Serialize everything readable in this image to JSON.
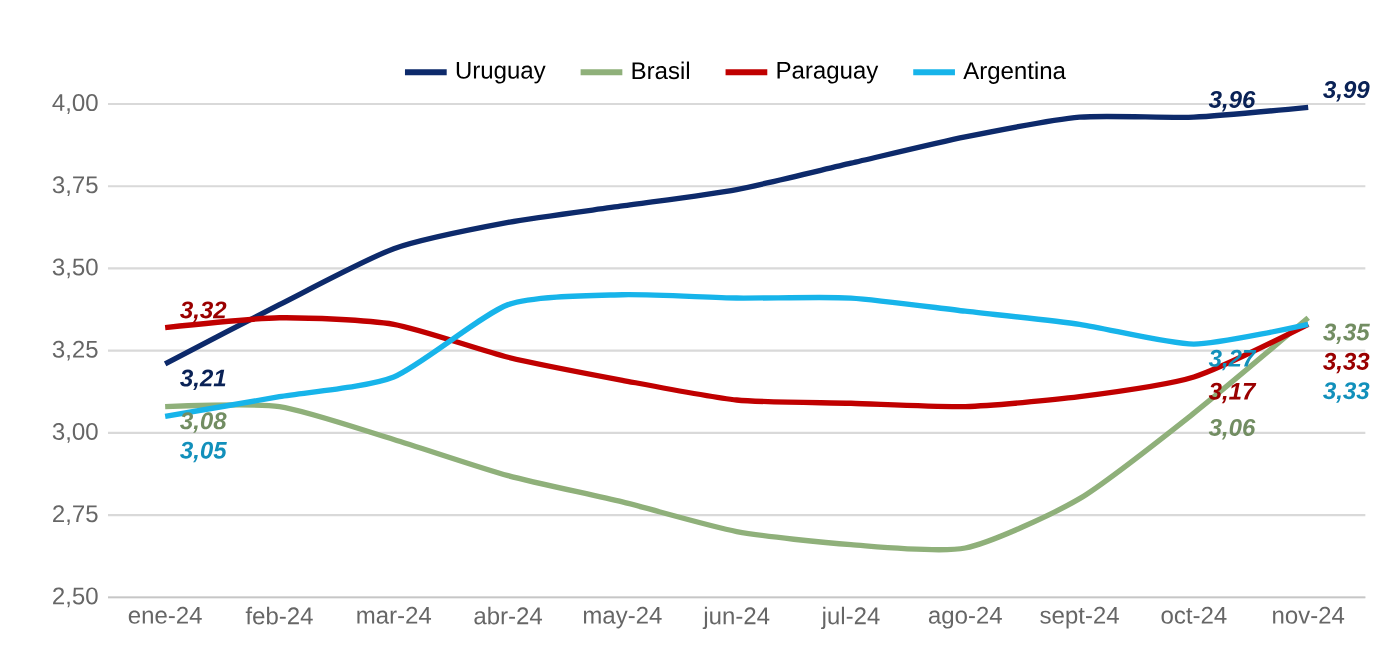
{
  "chart_data": {
    "type": "line",
    "categories": [
      "ene-24",
      "feb-24",
      "mar-24",
      "abr-24",
      "may-24",
      "jun-24",
      "jul-24",
      "ago-24",
      "sept-24",
      "oct-24",
      "nov-24"
    ],
    "ylim": [
      2.5,
      4.0
    ],
    "yticks": [
      {
        "value": 2.5,
        "label": "2,50"
      },
      {
        "value": 2.75,
        "label": "2,75"
      },
      {
        "value": 3.0,
        "label": "3,00"
      },
      {
        "value": 3.25,
        "label": "3,25"
      },
      {
        "value": 3.5,
        "label": "3,50"
      },
      {
        "value": 3.75,
        "label": "3,75"
      },
      {
        "value": 4.0,
        "label": "4,00"
      }
    ],
    "grid": "y",
    "legend": "top",
    "marker": "none",
    "line_style": "solid",
    "series": [
      {
        "name": "Uruguay",
        "color": "#0d2a6b",
        "values": [
          3.21,
          3.39,
          3.56,
          3.64,
          3.69,
          3.74,
          3.82,
          3.9,
          3.96,
          3.96,
          3.99
        ],
        "value_labels": [
          "3,21",
          null,
          null,
          null,
          null,
          null,
          null,
          null,
          null,
          "3,96",
          "3,99"
        ]
      },
      {
        "name": "Brasil",
        "color": "#8fb07a",
        "values": [
          3.08,
          3.08,
          2.98,
          2.87,
          2.79,
          2.7,
          2.66,
          2.65,
          2.8,
          3.06,
          3.35
        ],
        "value_labels": [
          "3,08",
          null,
          null,
          null,
          null,
          null,
          null,
          null,
          null,
          "3,06",
          "3,35"
        ]
      },
      {
        "name": "Paraguay",
        "color": "#c00000",
        "values": [
          3.32,
          3.35,
          3.33,
          3.23,
          3.16,
          3.1,
          3.09,
          3.08,
          3.11,
          3.17,
          3.33
        ],
        "value_labels": [
          "3,32",
          null,
          null,
          null,
          null,
          null,
          null,
          null,
          null,
          "3,17",
          "3,33"
        ]
      },
      {
        "name": "Argentina",
        "color": "#17b4ea",
        "values": [
          3.05,
          3.11,
          3.17,
          3.39,
          3.42,
          3.41,
          3.41,
          3.37,
          3.33,
          3.27,
          3.33
        ],
        "value_labels": [
          "3,05",
          null,
          null,
          null,
          null,
          null,
          null,
          null,
          null,
          "3,27",
          "3,33"
        ]
      }
    ]
  }
}
